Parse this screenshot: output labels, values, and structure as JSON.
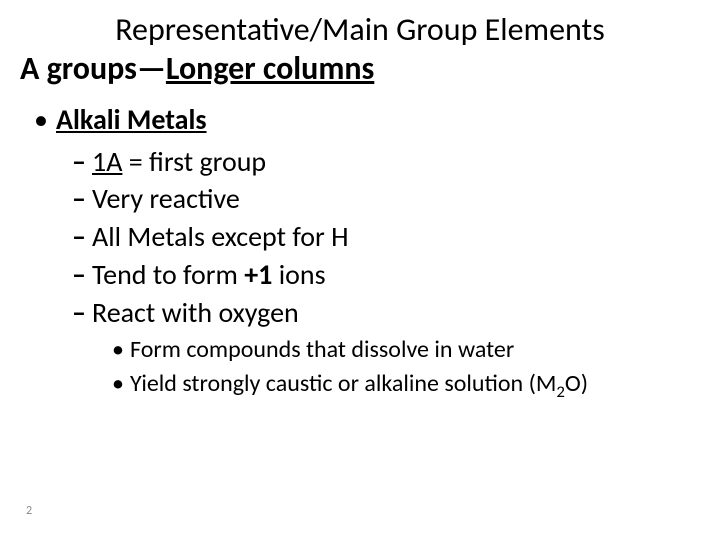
{
  "title": "Representative/Main Group Elements",
  "subtitle_prefix": "A groups—",
  "subtitle_underlined": "Longer columns",
  "lvl1": {
    "bullet": "•",
    "text": "Alkali Metals"
  },
  "lvl2": {
    "dash": "–",
    "items": {
      "a_pre": "1A",
      "a_post": "  = first group",
      "b": "Very reactive",
      "c": "All Metals except for H",
      "d_pre": "Tend to form ",
      "d_bold": "+1",
      "d_post": " ions",
      "e": "React with oxygen"
    }
  },
  "lvl3": {
    "dot": "•",
    "items": {
      "a": "Form compounds that dissolve in water",
      "b_pre": "Yield strongly caustic or alkaline solution (M",
      "b_sub": "2",
      "b_post": "O)"
    }
  },
  "page_number": "2",
  "colors": {
    "text": "#000000",
    "bg": "#ffffff",
    "pagenum": "#8a8a8a"
  }
}
